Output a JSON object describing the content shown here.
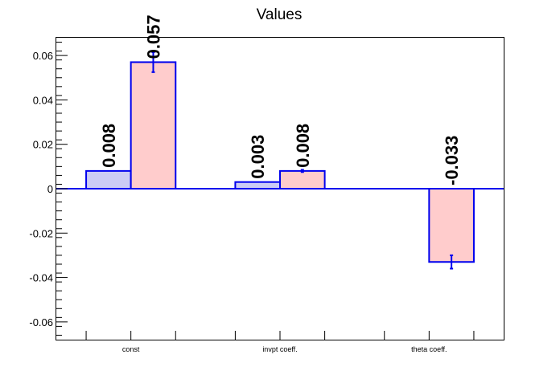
{
  "chart_data": {
    "type": "bar",
    "title": "Values",
    "xlabel": "",
    "ylabel": "",
    "categories": [
      "const",
      "invpt coeff.",
      "theta coeff."
    ],
    "ylim": [
      -0.068,
      0.068
    ],
    "yticks": [
      -0.06,
      -0.04,
      -0.02,
      0,
      0.02,
      0.04,
      0.06
    ],
    "ytick_labels": [
      "-0.06",
      "-0.04",
      "-0.02",
      "0",
      "0.02",
      "0.04",
      "0.06"
    ],
    "series": [
      {
        "values": [
          0.008,
          0.003,
          0
        ],
        "labels": [
          "0.008",
          "0.003",
          ""
        ],
        "errors": [
          0,
          0,
          0
        ],
        "fill": "#ccccf5",
        "edge": "#0000ee"
      },
      {
        "values": [
          0.057,
          0.008,
          -0.033
        ],
        "labels": [
          "0.057",
          "0.008",
          "-0.033"
        ],
        "errors": [
          0.0045,
          0.0005,
          0.003
        ],
        "fill": "#ffcccc",
        "edge": "#0000ee"
      }
    ],
    "grid": false,
    "legend": "none"
  }
}
